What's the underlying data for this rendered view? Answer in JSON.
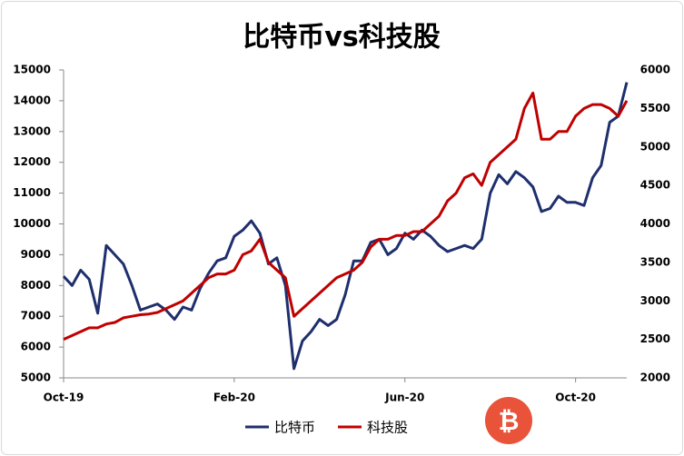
{
  "chart_data": {
    "type": "line",
    "title": "比特币vs科技股",
    "categories": [
      "Oct-19",
      null,
      null,
      null,
      null,
      null,
      null,
      null,
      null,
      null,
      null,
      null,
      null,
      null,
      null,
      null,
      null,
      null,
      null,
      null,
      "Feb-20",
      null,
      null,
      null,
      null,
      null,
      null,
      null,
      null,
      null,
      null,
      null,
      null,
      null,
      null,
      null,
      null,
      null,
      null,
      null,
      "Jun-20",
      null,
      null,
      null,
      null,
      null,
      null,
      null,
      null,
      null,
      null,
      null,
      null,
      null,
      null,
      null,
      null,
      null,
      null,
      null,
      "Oct-20",
      null,
      null,
      null,
      null,
      null,
      null
    ],
    "series": [
      {
        "name": "比特币",
        "color": "#1f2f6e",
        "axis": "y",
        "values": [
          8300,
          8000,
          8500,
          8200,
          7100,
          9300,
          9000,
          8700,
          8000,
          7200,
          7300,
          7400,
          7200,
          6900,
          7300,
          7200,
          7900,
          8400,
          8800,
          8900,
          9600,
          9800,
          10100,
          9700,
          8700,
          8900,
          8000,
          5300,
          6200,
          6500,
          6900,
          6700,
          6900,
          7700,
          8800,
          8800,
          9400,
          9500,
          9000,
          9200,
          9700,
          9500,
          9800,
          9600,
          9300,
          9100,
          9200,
          9300,
          9200,
          9500,
          11000,
          11600,
          11300,
          11700,
          11500,
          11200,
          10400,
          10500,
          10900,
          10700,
          10700,
          10600,
          11500,
          11900,
          13300,
          13500,
          14600
        ]
      },
      {
        "name": "科技股",
        "color": "#c00000",
        "axis": "y2",
        "values": [
          2500,
          2550,
          2600,
          2650,
          2650,
          2700,
          2720,
          2780,
          2800,
          2820,
          2830,
          2850,
          2900,
          2950,
          3000,
          3100,
          3200,
          3300,
          3350,
          3350,
          3400,
          3600,
          3650,
          3800,
          3500,
          3400,
          3300,
          2800,
          2900,
          3000,
          3100,
          3200,
          3300,
          3350,
          3400,
          3500,
          3700,
          3800,
          3800,
          3850,
          3850,
          3900,
          3900,
          4000,
          4100,
          4300,
          4400,
          4600,
          4650,
          4500,
          4800,
          4900,
          5000,
          5100,
          5500,
          5700,
          5100,
          5100,
          5200,
          5200,
          5400,
          5500,
          5550,
          5550,
          5500,
          5400,
          5600
        ]
      }
    ],
    "ylim": [
      5000,
      15000
    ],
    "yticks": [
      5000,
      6000,
      7000,
      8000,
      9000,
      10000,
      11000,
      12000,
      13000,
      14000,
      15000
    ],
    "y2lim": [
      2000,
      6000
    ],
    "y2ticks": [
      2000,
      2500,
      3000,
      3500,
      4000,
      4500,
      5000,
      5500,
      6000
    ],
    "legend": "bottom"
  }
}
